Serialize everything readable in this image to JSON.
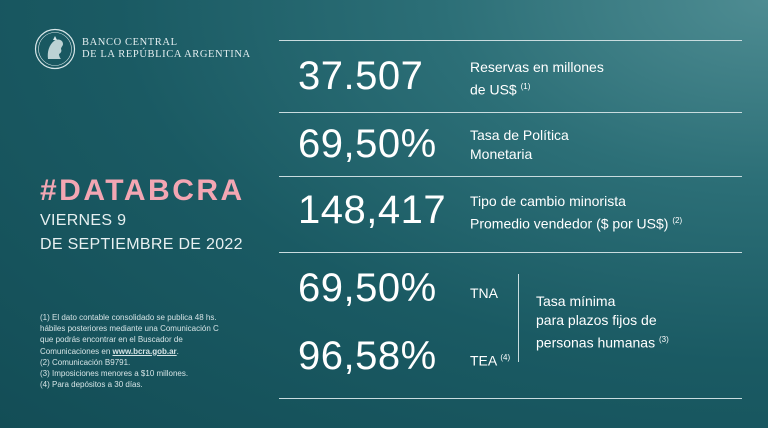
{
  "brand": {
    "line1": "BANCO CENTRAL",
    "line2": "DE LA REPÚBLICA ARGENTINA"
  },
  "hashtag": "#DATABCRA",
  "date": {
    "line1": "VIERNES 9",
    "line2": "DE SEPTIEMBRE DE 2022"
  },
  "notes": {
    "n1_a": "(1) El dato contable consolidado se publica 48 hs.",
    "n1_b": "hábiles posteriores mediante una Comunicación C",
    "n1_c": "que podrás encontrar en el Buscador de",
    "n1_d": "Comunicaciones en",
    "n1_link": "www.bcra.gob.ar",
    "n1_end": ".",
    "n2": "(2) Comunicación B9791.",
    "n3": "(3) Imposiciones menores a $10 millones.",
    "n4": "(4) Para depósitos a 30 días."
  },
  "indicators": {
    "reserves": {
      "value": "37.507",
      "label_line1": "Reservas en millones",
      "label_line2": "de US$",
      "note": "(1)"
    },
    "policy_rate": {
      "value": "69,50%",
      "label_line1": "Tasa de Política",
      "label_line2": "Monetaria"
    },
    "exchange": {
      "value": "148,417",
      "label_line1": "Tipo de cambio minorista",
      "label_line2": "Promedio vendedor  ($ por US$)",
      "note": "(2)"
    },
    "tna": {
      "value": "69,50%",
      "label": "TNA"
    },
    "tea": {
      "value": "96,58%",
      "label": "TEA",
      "note": "(4)"
    },
    "fixed_term": {
      "line1": "Tasa mínima",
      "line2": "para plazos fijos de",
      "line3": "personas humanas",
      "note": "(3)"
    }
  },
  "colors": {
    "background": "#1a5a63",
    "hashtag": "#f3a6b3",
    "rules": "#c9dcdf"
  }
}
